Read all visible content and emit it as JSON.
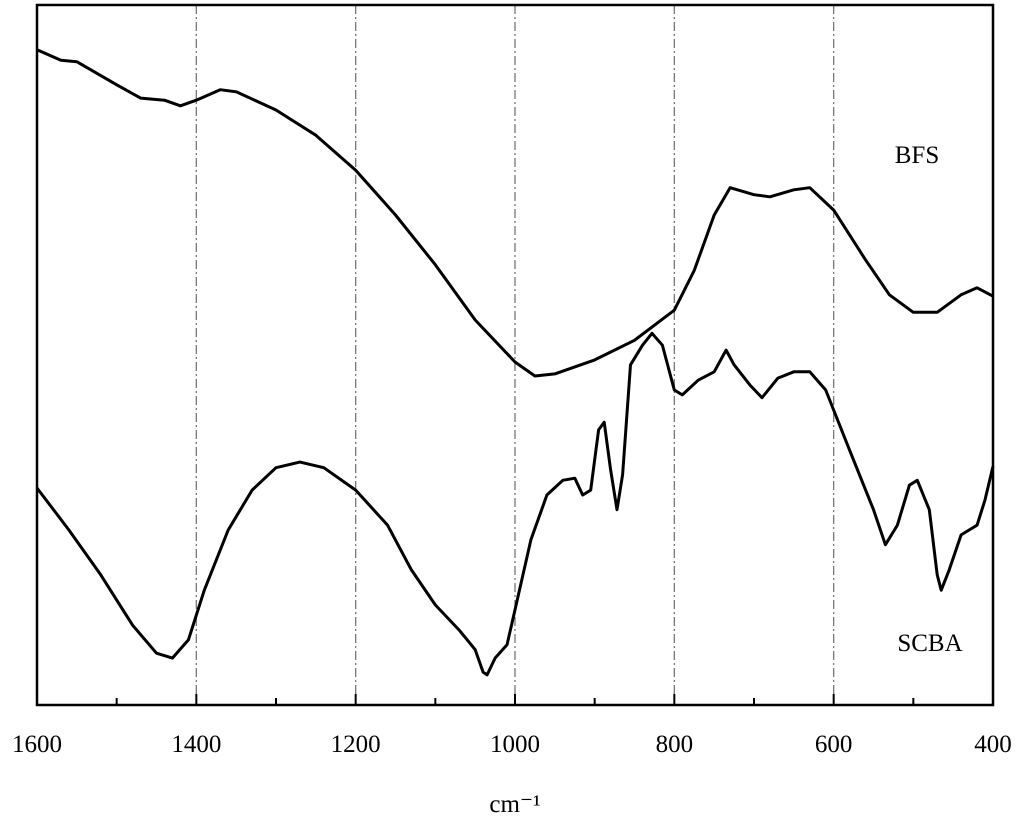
{
  "chart_data": {
    "type": "line",
    "xlabel": "cm⁻¹",
    "xlim": [
      1600,
      400
    ],
    "ylim": [
      0,
      100
    ],
    "xticks": [
      1600,
      1400,
      1200,
      1000,
      800,
      600,
      400
    ],
    "xminorticks": [
      1500,
      1300,
      1100,
      900,
      700,
      500
    ],
    "grid": true,
    "series": [
      {
        "name": "BFS",
        "color": "#000000",
        "x": [
          1600,
          1570,
          1550,
          1500,
          1470,
          1440,
          1420,
          1400,
          1370,
          1350,
          1300,
          1250,
          1200,
          1150,
          1100,
          1050,
          1000,
          975,
          950,
          900,
          850,
          800,
          775,
          750,
          730,
          700,
          680,
          650,
          630,
          600,
          560,
          530,
          500,
          470,
          440,
          420,
          400
        ],
        "values": [
          93.6,
          92.1,
          91.9,
          88.6,
          86.7,
          86.4,
          85.6,
          86.4,
          87.9,
          87.6,
          85.0,
          81.4,
          76.4,
          70.0,
          62.9,
          55.0,
          49.0,
          47.0,
          47.3,
          49.3,
          52.1,
          56.4,
          62.1,
          70.0,
          73.9,
          72.9,
          72.6,
          73.6,
          73.9,
          70.7,
          63.6,
          58.6,
          56.1,
          56.1,
          58.6,
          59.6,
          58.4
        ]
      },
      {
        "name": "SCBA",
        "color": "#000000",
        "x": [
          1600,
          1560,
          1520,
          1480,
          1450,
          1430,
          1410,
          1390,
          1360,
          1330,
          1300,
          1270,
          1240,
          1200,
          1160,
          1130,
          1100,
          1070,
          1050,
          1040,
          1035,
          1025,
          1010,
          1000,
          980,
          960,
          940,
          925,
          915,
          905,
          895,
          888,
          880,
          872,
          865,
          855,
          840,
          828,
          815,
          800,
          790,
          770,
          750,
          735,
          725,
          705,
          690,
          670,
          650,
          630,
          610,
          580,
          550,
          535,
          520,
          505,
          495,
          480,
          470,
          465,
          455,
          440,
          420,
          410,
          400
        ],
        "values": [
          31.0,
          25.0,
          18.6,
          11.4,
          7.4,
          6.7,
          9.3,
          16.4,
          25.0,
          30.7,
          33.9,
          34.7,
          33.9,
          30.7,
          25.7,
          19.3,
          14.3,
          10.7,
          7.9,
          4.7,
          4.3,
          6.7,
          8.6,
          13.6,
          23.6,
          30.0,
          32.1,
          32.4,
          30.0,
          30.7,
          39.3,
          40.4,
          33.6,
          27.9,
          32.9,
          48.6,
          51.4,
          53.1,
          51.4,
          45.0,
          44.3,
          46.4,
          47.6,
          50.7,
          48.6,
          45.7,
          43.9,
          46.7,
          47.6,
          47.6,
          45.0,
          36.4,
          27.9,
          22.9,
          25.7,
          31.4,
          32.1,
          27.9,
          18.6,
          16.4,
          19.3,
          24.3,
          25.7,
          29.3,
          34.1
        ]
      }
    ]
  }
}
